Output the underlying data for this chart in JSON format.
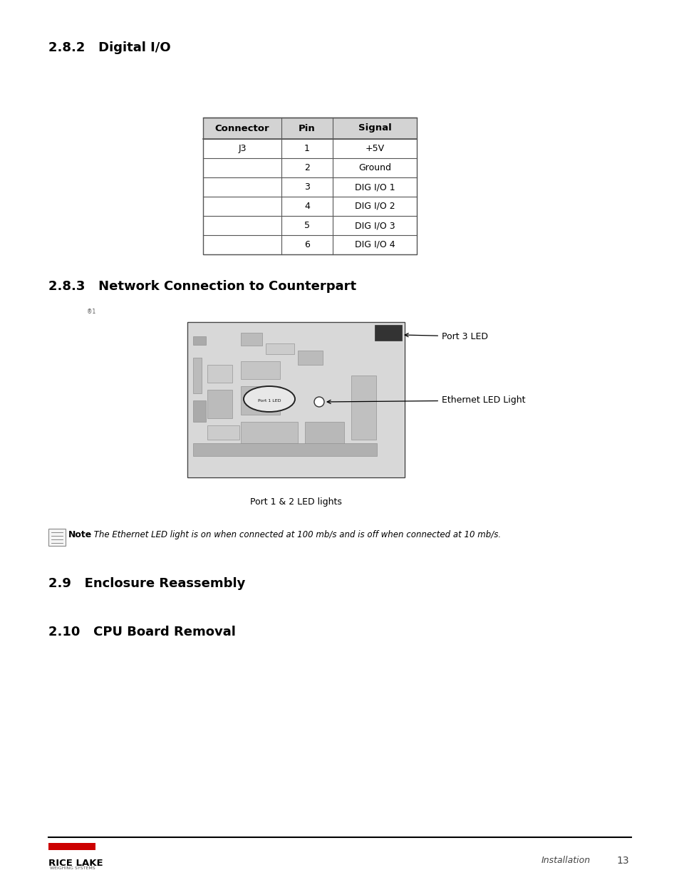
{
  "section_282_title": "2.8.2   Digital I/O",
  "section_283_title": "2.8.3   Network Connection to Counterpart",
  "section_29_title": "2.9   Enclosure Reassembly",
  "section_210_title": "2.10   CPU Board Removal",
  "table_headers": [
    "Connector",
    "Pin",
    "Signal"
  ],
  "table_rows": [
    [
      "J3",
      "1",
      "+5V"
    ],
    [
      "",
      "2",
      "Ground"
    ],
    [
      "",
      "3",
      "DIG I/O 1"
    ],
    [
      "",
      "4",
      "DIG I/O 2"
    ],
    [
      "",
      "5",
      "DIG I/O 3"
    ],
    [
      "",
      "6",
      "DIG I/O 4"
    ]
  ],
  "table_header_bg": "#d3d3d3",
  "table_bg": "#ffffff",
  "table_border": "#555555",
  "note_text": " The Ethernet LED light is on when connected at 100 mb/s and is off when connected at 10 mb/s.",
  "label_port3": "Port 3 LED",
  "label_ethernet": "Ethernet LED Light",
  "label_port12": "Port 1 & 2 LED lights",
  "footer_line_color": "#000000",
  "footer_text_sub": "WEIGHING SYSTEMS",
  "footer_text_right": "Installation",
  "footer_page": "13",
  "background_color": "#ffffff",
  "heading_color": "#000000",
  "body_fontsize": 9,
  "table_fontsize": 9,
  "logo_rect_color": "#cc0000",
  "section_title_fontsize": 13,
  "superscript_text": "®1"
}
